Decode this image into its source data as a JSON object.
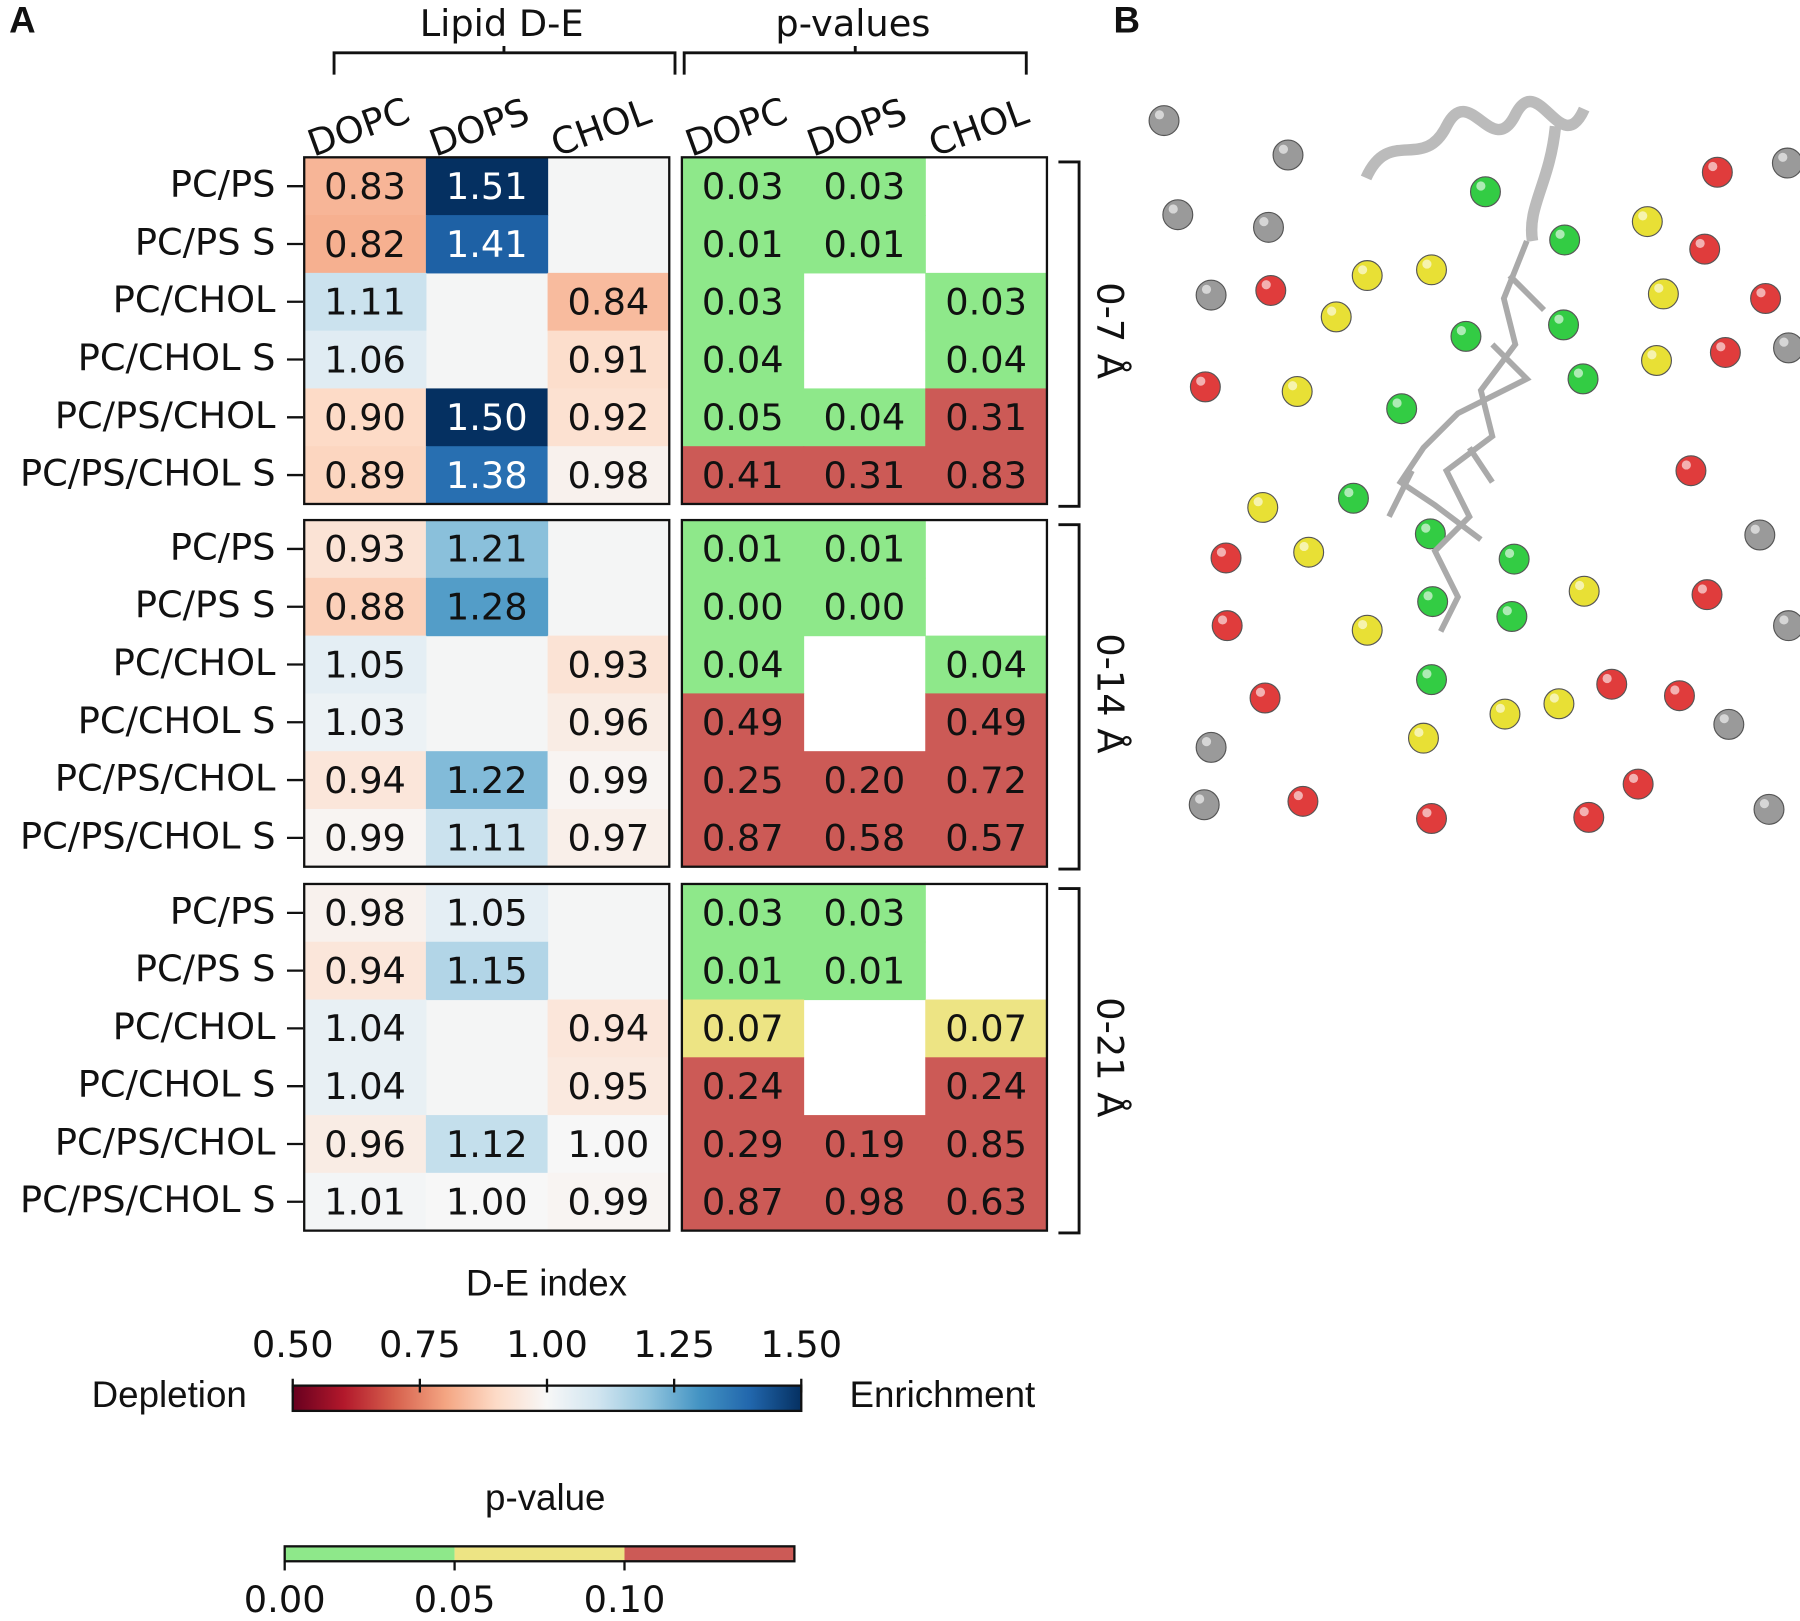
{
  "panel_labels": [
    "A",
    "B"
  ],
  "chart_data": {
    "type": "heatmap",
    "de_title": "Lipid D-E",
    "p_title": "p-values",
    "columns": [
      "DOPC",
      "DOPS",
      "CHOL"
    ],
    "rows": [
      "PC/PS",
      "PC/PS S",
      "PC/CHOL",
      "PC/CHOL S",
      "PC/PS/CHOL",
      "PC/PS/CHOL S"
    ],
    "groups": [
      {
        "name": "0-7 Å",
        "de": [
          [
            0.83,
            1.51,
            null
          ],
          [
            0.82,
            1.41,
            null
          ],
          [
            1.11,
            null,
            0.84
          ],
          [
            1.06,
            null,
            0.91
          ],
          [
            0.9,
            1.5,
            0.92
          ],
          [
            0.89,
            1.38,
            0.98
          ]
        ],
        "de_labels": [
          [
            "0.83",
            "1.51",
            null
          ],
          [
            "0.82",
            "1.41",
            null
          ],
          [
            "1.11",
            null,
            "0.84"
          ],
          [
            "1.06",
            null,
            "0.91"
          ],
          [
            "0.90",
            "1.50",
            "0.92"
          ],
          [
            "0.89",
            "1.38",
            "0.98"
          ]
        ],
        "p": [
          [
            0.03,
            0.03,
            null
          ],
          [
            0.01,
            0.01,
            null
          ],
          [
            0.03,
            null,
            0.03
          ],
          [
            0.04,
            null,
            0.04
          ],
          [
            0.05,
            0.04,
            0.31
          ],
          [
            0.41,
            0.31,
            0.83
          ]
        ],
        "p_labels": [
          [
            "0.03",
            "0.03",
            null
          ],
          [
            "0.01",
            "0.01",
            null
          ],
          [
            "0.03",
            null,
            "0.03"
          ],
          [
            "0.04",
            null,
            "0.04"
          ],
          [
            "0.05",
            "0.04",
            "0.31"
          ],
          [
            "0.41",
            "0.31",
            "0.83"
          ]
        ]
      },
      {
        "name": "0-14 Å",
        "de": [
          [
            0.93,
            1.21,
            null
          ],
          [
            0.88,
            1.28,
            null
          ],
          [
            1.05,
            null,
            0.93
          ],
          [
            1.03,
            null,
            0.96
          ],
          [
            0.94,
            1.22,
            0.99
          ],
          [
            0.99,
            1.11,
            0.97
          ]
        ],
        "de_labels": [
          [
            "0.93",
            "1.21",
            null
          ],
          [
            "0.88",
            "1.28",
            null
          ],
          [
            "1.05",
            null,
            "0.93"
          ],
          [
            "1.03",
            null,
            "0.96"
          ],
          [
            "0.94",
            "1.22",
            "0.99"
          ],
          [
            "0.99",
            "1.11",
            "0.97"
          ]
        ],
        "p": [
          [
            0.01,
            0.01,
            null
          ],
          [
            0,
            0,
            null
          ],
          [
            0.04,
            null,
            0.04
          ],
          [
            0.49,
            null,
            0.49
          ],
          [
            0.25,
            0.2,
            0.72
          ],
          [
            0.87,
            0.58,
            0.57
          ]
        ],
        "p_labels": [
          [
            "0.01",
            "0.01",
            null
          ],
          [
            "0.00",
            "0.00",
            null
          ],
          [
            "0.04",
            null,
            "0.04"
          ],
          [
            "0.49",
            null,
            "0.49"
          ],
          [
            "0.25",
            "0.20",
            "0.72"
          ],
          [
            "0.87",
            "0.58",
            "0.57"
          ]
        ]
      },
      {
        "name": "0-21 Å",
        "de": [
          [
            0.98,
            1.05,
            null
          ],
          [
            0.94,
            1.15,
            null
          ],
          [
            1.04,
            null,
            0.94
          ],
          [
            1.04,
            null,
            0.95
          ],
          [
            0.96,
            1.12,
            1
          ],
          [
            1.01,
            1,
            0.99
          ]
        ],
        "de_labels": [
          [
            "0.98",
            "1.05",
            null
          ],
          [
            "0.94",
            "1.15",
            null
          ],
          [
            "1.04",
            null,
            "0.94"
          ],
          [
            "1.04",
            null,
            "0.95"
          ],
          [
            "0.96",
            "1.12",
            "1.00"
          ],
          [
            "1.01",
            "1.00",
            "0.99"
          ]
        ],
        "p": [
          [
            0.03,
            0.03,
            null
          ],
          [
            0.01,
            0.01,
            null
          ],
          [
            0.07,
            null,
            0.07
          ],
          [
            0.24,
            null,
            0.24
          ],
          [
            0.29,
            0.19,
            0.85
          ],
          [
            0.87,
            0.98,
            0.63
          ]
        ],
        "p_labels": [
          [
            "0.03",
            "0.03",
            null
          ],
          [
            "0.01",
            "0.01",
            null
          ],
          [
            "0.07",
            null,
            "0.07"
          ],
          [
            "0.24",
            null,
            "0.24"
          ],
          [
            "0.29",
            "0.19",
            "0.85"
          ],
          [
            "0.87",
            "0.98",
            "0.63"
          ]
        ]
      }
    ],
    "de_missing_color": "#f4f5f5",
    "de_colorbar": {
      "title": "D-E index",
      "lim": [
        0.5,
        1.5
      ],
      "ticks": [
        {
          "value": 0.5,
          "label": "0.50"
        },
        {
          "value": 0.75,
          "label": "0.75"
        },
        {
          "value": 1,
          "label": "1.00"
        },
        {
          "value": 1.25,
          "label": "1.25"
        },
        {
          "value": 1.5,
          "label": "1.50"
        }
      ],
      "left_label": "Depletion",
      "right_label": "Enrichment",
      "colors": [
        "#67001f",
        "#b2182b",
        "#d6604d",
        "#f4a582",
        "#fddbc7",
        "#f7f7f7",
        "#d1e5f0",
        "#92c5de",
        "#4393c3",
        "#2166ac",
        "#053061"
      ]
    },
    "p_colorbar": {
      "title": "p-value",
      "lim": [
        0,
        0.15
      ],
      "ticks": [
        {
          "value": 0,
          "label": "0.00"
        },
        {
          "value": 0.05,
          "label": "0.05"
        },
        {
          "value": 0.1,
          "label": "0.10"
        }
      ],
      "bins": [
        0,
        0.05,
        0.1,
        0.15
      ],
      "colors": [
        "#8ee88a",
        "#ede484",
        "#cc5a56"
      ]
    }
  }
}
